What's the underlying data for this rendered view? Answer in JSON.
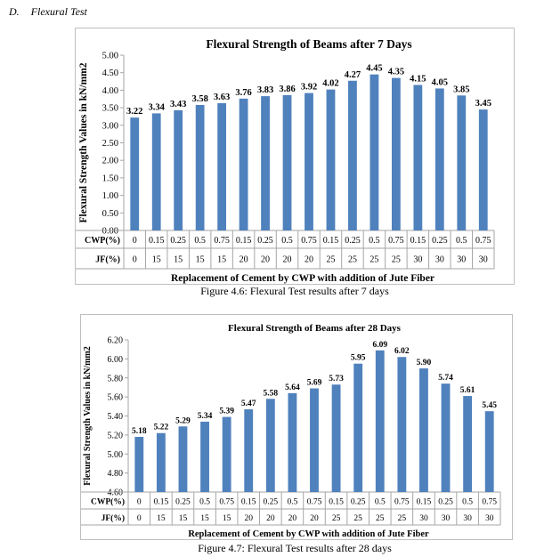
{
  "section": {
    "number": "D.",
    "title": "Flexural Test"
  },
  "colors": {
    "bar": "#4f81bd",
    "axis": "#a6a6a6",
    "frame": "#bfbfbf"
  },
  "chart_data": [
    {
      "type": "bar",
      "title": "Flexural Strength of Beams  after 7 Days",
      "ylabel": "Flexural Strength Values in kN/mm2",
      "xlabel": "Replacement of Cement by CWP  with addition of Jute Fiber",
      "category_rows": [
        {
          "label": "CWP(%)",
          "values": [
            "0",
            "0.15",
            "0.25",
            "0.5",
            "0.75",
            "0.15",
            "0.25",
            "0.5",
            "0.75",
            "0.15",
            "0.25",
            "0.5",
            "0.75",
            "0.15",
            "0.25",
            "0.5",
            "0.75"
          ]
        },
        {
          "label": "JF(%)",
          "values": [
            "0",
            "15",
            "15",
            "15",
            "15",
            "20",
            "20",
            "20",
            "20",
            "25",
            "25",
            "25",
            "25",
            "30",
            "30",
            "30",
            "30"
          ]
        }
      ],
      "values": [
        3.22,
        3.34,
        3.43,
        3.58,
        3.63,
        3.76,
        3.83,
        3.86,
        3.92,
        4.02,
        4.27,
        4.45,
        4.35,
        4.15,
        4.05,
        3.85,
        3.45
      ],
      "data_labels": [
        "3.22",
        "3.34",
        "3.43",
        "3.58",
        "3.63",
        "3.76",
        "3.83",
        "3.86",
        "3.92",
        "4.02",
        "4.27",
        "4.45",
        "4.35",
        "4.15",
        "4.05",
        "3.85",
        "3.45"
      ],
      "ylim": [
        0,
        5
      ],
      "yticks": [
        "0.00",
        "0.50",
        "1.00",
        "1.50",
        "2.00",
        "2.50",
        "3.00",
        "3.50",
        "4.00",
        "4.50",
        "5.00"
      ],
      "grid": false,
      "legend": "none"
    },
    {
      "type": "bar",
      "title": "Flexural Strength of Beams  after 28 Days",
      "ylabel": "Flexural Strength Values in kN/mm2",
      "xlabel": "Replacement of Cement by CWP  with addition of Jute Fiber",
      "category_rows": [
        {
          "label": "CWP(%)",
          "values": [
            "0",
            "0.15",
            "0.25",
            "0.5",
            "0.75",
            "0.15",
            "0.25",
            "0.5",
            "0.75",
            "0.15",
            "0.25",
            "0.5",
            "0.75",
            "0.15",
            "0.25",
            "0.5",
            "0.75"
          ]
        },
        {
          "label": "JF(%)",
          "values": [
            "0",
            "15",
            "15",
            "15",
            "15",
            "20",
            "20",
            "20",
            "20",
            "25",
            "25",
            "25",
            "25",
            "30",
            "30",
            "30",
            "30"
          ]
        }
      ],
      "values": [
        5.18,
        5.22,
        5.29,
        5.34,
        5.39,
        5.47,
        5.58,
        5.64,
        5.69,
        5.73,
        5.95,
        6.09,
        6.02,
        5.9,
        5.74,
        5.61,
        5.45
      ],
      "data_labels": [
        "5.18",
        "5.22",
        "5.29",
        "5.34",
        "5.39",
        "5.47",
        "5.58",
        "5.64",
        "5.69",
        "5.73",
        "5.95",
        "6.09",
        "6.02",
        "5.90",
        "5.74",
        "5.61",
        "5.45"
      ],
      "ylim": [
        4.6,
        6.2
      ],
      "yticks": [
        "4.60",
        "4.80",
        "5.00",
        "5.20",
        "5.40",
        "5.60",
        "5.80",
        "6.00",
        "6.20"
      ],
      "grid": false,
      "legend": "none"
    }
  ],
  "captions": [
    "Figure 4.6: Flexural Test results after 7 days",
    "Figure 4.7: Flexural Test results after 28 days"
  ]
}
